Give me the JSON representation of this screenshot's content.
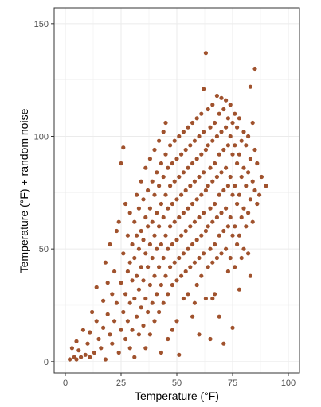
{
  "chart_data": {
    "type": "scatter",
    "xlabel": "Temperature (°F)",
    "ylabel": "Temperature (°F) + random noise",
    "xlim": [
      -5,
      105
    ],
    "ylim": [
      -5,
      157
    ],
    "xticks": [
      0,
      25,
      50,
      75,
      100
    ],
    "yticks": [
      0,
      50,
      100,
      150
    ],
    "grid": true,
    "point_color": "#a0522d",
    "sampled": true,
    "points": [
      [
        2,
        1
      ],
      [
        3,
        6
      ],
      [
        4,
        2
      ],
      [
        5,
        9
      ],
      [
        5,
        1
      ],
      [
        6,
        5
      ],
      [
        7,
        2
      ],
      [
        8,
        14
      ],
      [
        9,
        3
      ],
      [
        10,
        8
      ],
      [
        11,
        2
      ],
      [
        11,
        13
      ],
      [
        12,
        22
      ],
      [
        13,
        4
      ],
      [
        14,
        33
      ],
      [
        14,
        18
      ],
      [
        15,
        10
      ],
      [
        16,
        6
      ],
      [
        17,
        27
      ],
      [
        17,
        15
      ],
      [
        18,
        1
      ],
      [
        18,
        44
      ],
      [
        19,
        35
      ],
      [
        19,
        21
      ],
      [
        20,
        12
      ],
      [
        20,
        52
      ],
      [
        21,
        8
      ],
      [
        21,
        30
      ],
      [
        22,
        40
      ],
      [
        22,
        18
      ],
      [
        23,
        58
      ],
      [
        23,
        26
      ],
      [
        24,
        4
      ],
      [
        24,
        62
      ],
      [
        25,
        35
      ],
      [
        25,
        14
      ],
      [
        25,
        88
      ],
      [
        26,
        95
      ],
      [
        26,
        48
      ],
      [
        26,
        22
      ],
      [
        27,
        70
      ],
      [
        27,
        30
      ],
      [
        27,
        10
      ],
      [
        28,
        56
      ],
      [
        28,
        40
      ],
      [
        28,
        18
      ],
      [
        29,
        66
      ],
      [
        29,
        44
      ],
      [
        29,
        26
      ],
      [
        29,
        6
      ],
      [
        30,
        52
      ],
      [
        30,
        36
      ],
      [
        30,
        14
      ],
      [
        31,
        62
      ],
      [
        31,
        46
      ],
      [
        31,
        28
      ],
      [
        31,
        2
      ],
      [
        32,
        74
      ],
      [
        32,
        56
      ],
      [
        32,
        38
      ],
      [
        32,
        20
      ],
      [
        33,
        68
      ],
      [
        33,
        50
      ],
      [
        33,
        32
      ],
      [
        33,
        12
      ],
      [
        34,
        80
      ],
      [
        34,
        58
      ],
      [
        34,
        42
      ],
      [
        34,
        24
      ],
      [
        35,
        72
      ],
      [
        35,
        54
      ],
      [
        35,
        36
      ],
      [
        35,
        16
      ],
      [
        36,
        86
      ],
      [
        36,
        64
      ],
      [
        36,
        48
      ],
      [
        36,
        28
      ],
      [
        36,
        6
      ],
      [
        37,
        76
      ],
      [
        37,
        60
      ],
      [
        37,
        42
      ],
      [
        37,
        22
      ],
      [
        38,
        90
      ],
      [
        38,
        68
      ],
      [
        38,
        52
      ],
      [
        38,
        34
      ],
      [
        38,
        12
      ],
      [
        39,
        80
      ],
      [
        39,
        62
      ],
      [
        39,
        46
      ],
      [
        39,
        26
      ],
      [
        40,
        94
      ],
      [
        40,
        74
      ],
      [
        40,
        56
      ],
      [
        40,
        38
      ],
      [
        40,
        18
      ],
      [
        41,
        84
      ],
      [
        41,
        66
      ],
      [
        41,
        50
      ],
      [
        41,
        30
      ],
      [
        42,
        98
      ],
      [
        42,
        78
      ],
      [
        42,
        60
      ],
      [
        42,
        42
      ],
      [
        42,
        22
      ],
      [
        43,
        88
      ],
      [
        43,
        70
      ],
      [
        43,
        52
      ],
      [
        43,
        34
      ],
      [
        43,
        4
      ],
      [
        44,
        102
      ],
      [
        44,
        82
      ],
      [
        44,
        64
      ],
      [
        44,
        46
      ],
      [
        44,
        26
      ],
      [
        45,
        92
      ],
      [
        45,
        74
      ],
      [
        45,
        56
      ],
      [
        45,
        38
      ],
      [
        45,
        106
      ],
      [
        46,
        86
      ],
      [
        46,
        68
      ],
      [
        46,
        50
      ],
      [
        46,
        30
      ],
      [
        46,
        10
      ],
      [
        47,
        96
      ],
      [
        47,
        78
      ],
      [
        47,
        60
      ],
      [
        47,
        42
      ],
      [
        48,
        88
      ],
      [
        48,
        70
      ],
      [
        48,
        52
      ],
      [
        48,
        34
      ],
      [
        48,
        14
      ],
      [
        49,
        98
      ],
      [
        49,
        80
      ],
      [
        49,
        62
      ],
      [
        49,
        44
      ],
      [
        50,
        90
      ],
      [
        50,
        72
      ],
      [
        50,
        54
      ],
      [
        50,
        36
      ],
      [
        50,
        18
      ],
      [
        51,
        100
      ],
      [
        51,
        82
      ],
      [
        51,
        64
      ],
      [
        51,
        46
      ],
      [
        51,
        3
      ],
      [
        52,
        92
      ],
      [
        52,
        74
      ],
      [
        52,
        56
      ],
      [
        52,
        38
      ],
      [
        53,
        102
      ],
      [
        53,
        84
      ],
      [
        53,
        66
      ],
      [
        53,
        48
      ],
      [
        53,
        28
      ],
      [
        54,
        94
      ],
      [
        54,
        76
      ],
      [
        54,
        58
      ],
      [
        54,
        40
      ],
      [
        55,
        104
      ],
      [
        55,
        86
      ],
      [
        55,
        68
      ],
      [
        55,
        50
      ],
      [
        55,
        30
      ],
      [
        56,
        96
      ],
      [
        56,
        78
      ],
      [
        56,
        60
      ],
      [
        56,
        42
      ],
      [
        57,
        106
      ],
      [
        57,
        88
      ],
      [
        57,
        70
      ],
      [
        57,
        52
      ],
      [
        57,
        20
      ],
      [
        58,
        98
      ],
      [
        58,
        80
      ],
      [
        58,
        62
      ],
      [
        58,
        44
      ],
      [
        59,
        108
      ],
      [
        59,
        90
      ],
      [
        59,
        72
      ],
      [
        59,
        54
      ],
      [
        59,
        34
      ],
      [
        60,
        100
      ],
      [
        60,
        82
      ],
      [
        60,
        64
      ],
      [
        60,
        46
      ],
      [
        60,
        12
      ],
      [
        61,
        110
      ],
      [
        61,
        92
      ],
      [
        61,
        74
      ],
      [
        61,
        56
      ],
      [
        61,
        38
      ],
      [
        62,
        121
      ],
      [
        62,
        102
      ],
      [
        62,
        84
      ],
      [
        62,
        66
      ],
      [
        62,
        48
      ],
      [
        63,
        137
      ],
      [
        63,
        94
      ],
      [
        63,
        76
      ],
      [
        63,
        58
      ],
      [
        63,
        28
      ],
      [
        64,
        112
      ],
      [
        64,
        96
      ],
      [
        64,
        78
      ],
      [
        64,
        60
      ],
      [
        64,
        42
      ],
      [
        65,
        104
      ],
      [
        65,
        86
      ],
      [
        65,
        68
      ],
      [
        65,
        50
      ],
      [
        65,
        10
      ],
      [
        66,
        114
      ],
      [
        66,
        98
      ],
      [
        66,
        80
      ],
      [
        66,
        62
      ],
      [
        66,
        44
      ],
      [
        67,
        106
      ],
      [
        67,
        88
      ],
      [
        67,
        70
      ],
      [
        67,
        52
      ],
      [
        67,
        30
      ],
      [
        68,
        118
      ],
      [
        68,
        100
      ],
      [
        68,
        82
      ],
      [
        68,
        64
      ],
      [
        68,
        46
      ],
      [
        69,
        110
      ],
      [
        69,
        92
      ],
      [
        69,
        74
      ],
      [
        69,
        56
      ],
      [
        69,
        20
      ],
      [
        70,
        117
      ],
      [
        70,
        102
      ],
      [
        70,
        84
      ],
      [
        70,
        66
      ],
      [
        70,
        48
      ],
      [
        71,
        112
      ],
      [
        71,
        94
      ],
      [
        71,
        76
      ],
      [
        71,
        58
      ],
      [
        71,
        8
      ],
      [
        72,
        116
      ],
      [
        72,
        104
      ],
      [
        72,
        86
      ],
      [
        72,
        68
      ],
      [
        72,
        50
      ],
      [
        73,
        108
      ],
      [
        73,
        96
      ],
      [
        73,
        78
      ],
      [
        73,
        60
      ],
      [
        73,
        40
      ],
      [
        74,
        114
      ],
      [
        74,
        100
      ],
      [
        74,
        82
      ],
      [
        74,
        64
      ],
      [
        74,
        46
      ],
      [
        75,
        106
      ],
      [
        75,
        92
      ],
      [
        75,
        74
      ],
      [
        75,
        56
      ],
      [
        75,
        15
      ],
      [
        76,
        110
      ],
      [
        76,
        96
      ],
      [
        76,
        78
      ],
      [
        76,
        60
      ],
      [
        76,
        42
      ],
      [
        77,
        104
      ],
      [
        77,
        88
      ],
      [
        77,
        70
      ],
      [
        77,
        52
      ],
      [
        78,
        108
      ],
      [
        78,
        92
      ],
      [
        78,
        74
      ],
      [
        78,
        56
      ],
      [
        78,
        32
      ],
      [
        79,
        98
      ],
      [
        79,
        82
      ],
      [
        79,
        64
      ],
      [
        79,
        46
      ],
      [
        80,
        102
      ],
      [
        80,
        86
      ],
      [
        80,
        68
      ],
      [
        80,
        50
      ],
      [
        81,
        96
      ],
      [
        81,
        78
      ],
      [
        81,
        60
      ],
      [
        82,
        100
      ],
      [
        82,
        84
      ],
      [
        82,
        66
      ],
      [
        82,
        48
      ],
      [
        83,
        122
      ],
      [
        83,
        90
      ],
      [
        83,
        72
      ],
      [
        83,
        38
      ],
      [
        84,
        106
      ],
      [
        84,
        80
      ],
      [
        84,
        62
      ],
      [
        85,
        130
      ],
      [
        85,
        94
      ],
      [
        85,
        76
      ],
      [
        86,
        88
      ],
      [
        86,
        70
      ],
      [
        87,
        74
      ],
      [
        88,
        82
      ],
      [
        90,
        78
      ],
      [
        66,
        28
      ],
      [
        58,
        26
      ]
    ]
  }
}
